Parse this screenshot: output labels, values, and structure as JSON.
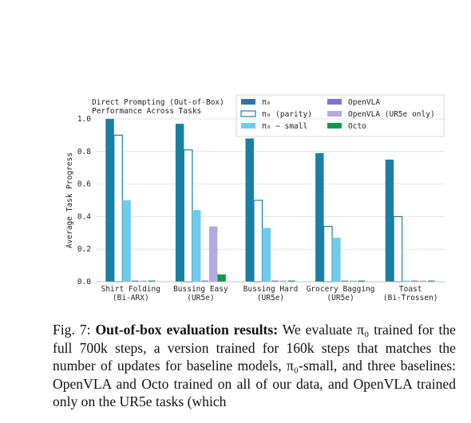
{
  "chart_data": {
    "type": "bar",
    "title": [
      "Direct Prompting (Out-of-Box)",
      "Performance Across Tasks"
    ],
    "y_label": "Average Task Progress",
    "categories": [
      [
        "Shirt Folding",
        "(Bi-ARX)"
      ],
      [
        "Bussing Easy",
        "(UR5e)"
      ],
      [
        "Bussing Hard",
        "(UR5e)"
      ],
      [
        "Grocery Bagging",
        "(UR5e)"
      ],
      [
        "Toast",
        "(Bi-Trossen)"
      ]
    ],
    "series": [
      {
        "name": "π₀",
        "color": "#1b7fa3",
        "values": [
          1.0,
          0.97,
          0.88,
          0.79,
          0.75
        ]
      },
      {
        "name": "π₀ (parity)",
        "color": "#1b7fa3",
        "fill": "#ffffff",
        "values": [
          0.9,
          0.81,
          0.5,
          0.34,
          0.4
        ]
      },
      {
        "name": "π₀ − small",
        "color": "#6fcbeb",
        "values": [
          0.5,
          0.44,
          0.33,
          0.27,
          0
        ]
      },
      {
        "name": "OpenVLA",
        "color": "#7f74d2",
        "values": [
          0,
          0,
          0,
          0,
          0
        ]
      },
      {
        "name": "OpenVLA (UR5e only)",
        "color": "#b3abe0",
        "values": [
          0,
          0.34,
          0,
          0,
          0
        ]
      },
      {
        "name": "Octo",
        "color": "#119a4a",
        "values": [
          0,
          0.045,
          0,
          0,
          0
        ]
      }
    ],
    "ylim": [
      0,
      1.0
    ],
    "yticks": [
      {
        "value": 0,
        "label": "0.0"
      },
      {
        "value": 0.2,
        "label": "0.2"
      },
      {
        "value": 0.4,
        "label": "0.4"
      },
      {
        "value": 0.6,
        "label": "0.6"
      },
      {
        "value": 0.8,
        "label": "0.8"
      },
      {
        "value": 1.0,
        "label": "1.0"
      }
    ],
    "grid": true
  },
  "caption": {
    "label": "Fig. 7:",
    "heading": "Out-of-box evaluation results:",
    "text": "We evaluate π₀ trained for the full 700k steps, a version trained for 160k steps that matches the number of updates for baseline models, π₀-small, and three baselines: OpenVLA and Octo trained on all of our data, and OpenVLA trained only on the UR5e tasks (which"
  }
}
